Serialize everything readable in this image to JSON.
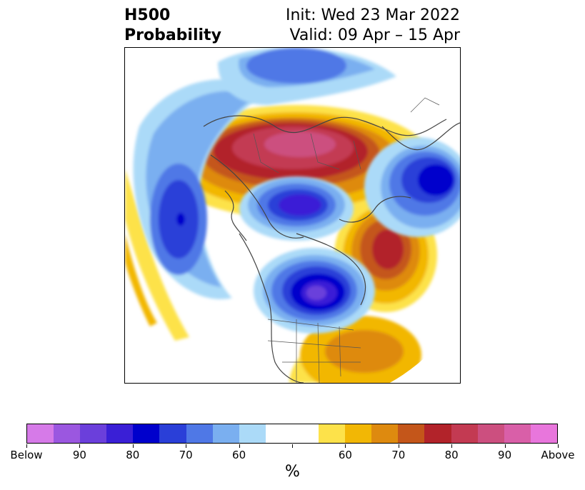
{
  "header": {
    "title_line1": "H500",
    "title_line2": "Probability",
    "init_text": "Init: Wed 23 Mar 2022",
    "valid_text": "Valid: 09 Apr – 15 Apr"
  },
  "map": {
    "projection": "north-polar-stereographic",
    "features": [
      {
        "name": "below-anomaly-north-pacific",
        "category": "below",
        "level": "80"
      },
      {
        "name": "below-anomaly-hudson-bay",
        "category": "below",
        "level": "90"
      },
      {
        "name": "below-anomaly-arctic-siberia",
        "category": "below",
        "level": "80"
      },
      {
        "name": "below-anomaly-north-atlantic",
        "category": "below",
        "level": "70"
      },
      {
        "name": "above-anomaly-north-atlantic",
        "category": "above",
        "level": "80"
      },
      {
        "name": "above-anomaly-siberia-arctic",
        "category": "above",
        "level": "90"
      },
      {
        "name": "above-anomaly-southeast-us",
        "category": "above",
        "level": "70"
      }
    ]
  },
  "colorbar": {
    "unit_label": "%",
    "colors": [
      "#d67ae8",
      "#9b57e0",
      "#6b3fdb",
      "#3a1fd6",
      "#0000cc",
      "#2a3fd8",
      "#4f78e6",
      "#7aaff0",
      "#abdaf8",
      "#ffffff",
      "#ffffff",
      "#fde24a",
      "#f2b705",
      "#de8a0f",
      "#c4561a",
      "#b2232a",
      "#c33a52",
      "#cc4f7f",
      "#d95fa8",
      "#e876dc"
    ],
    "tick_labels": [
      "Below",
      "90",
      "80",
      "70",
      "60",
      "",
      "60",
      "70",
      "80",
      "90",
      "Above"
    ]
  }
}
